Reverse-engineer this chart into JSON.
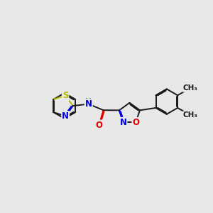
{
  "bg_color": "#e8e8e8",
  "bond_color": "#1a1a1a",
  "S_color": "#b8b800",
  "N_color": "#0000e0",
  "O_color": "#e00000",
  "H_color": "#4a9090",
  "C_color": "#1a1a1a",
  "lw": 1.4,
  "dbo": 0.055,
  "fs": 8.5,
  "xlim": [
    -5.5,
    6.5
  ],
  "ylim": [
    -3.5,
    3.5
  ]
}
